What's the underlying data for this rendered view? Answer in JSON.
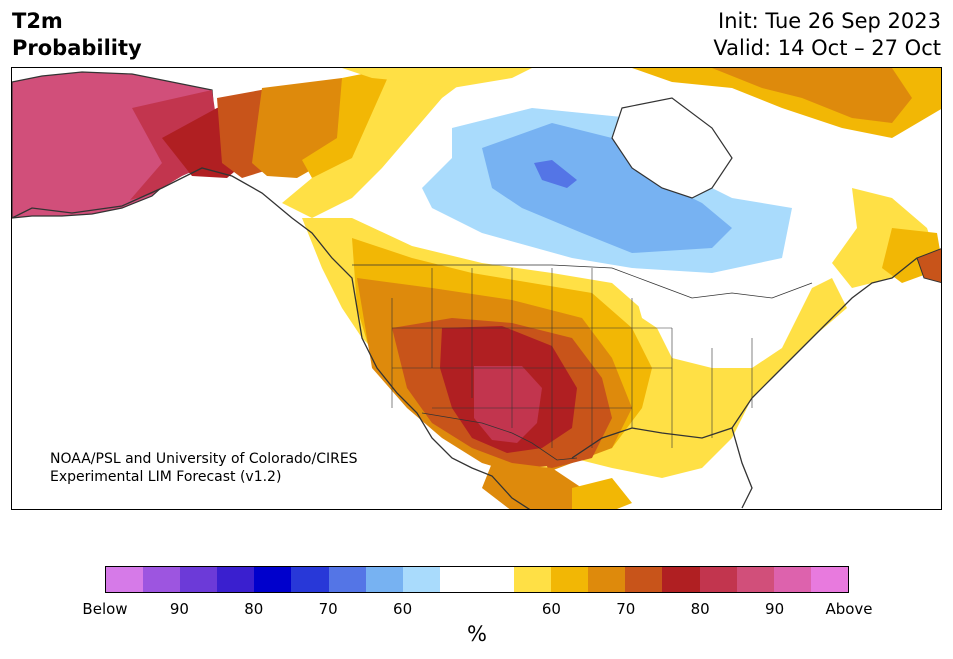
{
  "header": {
    "title_line1": "T2m",
    "title_line2": "Probability",
    "init_text": "Init: Tue 26 Sep 2023",
    "valid_text": "Valid: 14 Oct – 27 Oct"
  },
  "map": {
    "credit_line1": "NOAA/PSL and University of Colorado/CIRES",
    "credit_line2": "Experimental LIM Forecast (v1.2)"
  },
  "colorbar": {
    "colors": [
      "#d67ae8",
      "#9d55e0",
      "#6c3ad8",
      "#3a1fcf",
      "#0000cc",
      "#2838d8",
      "#5475e6",
      "#77b2f2",
      "#a9dbfc",
      "#ffffff",
      "#ffffff",
      "#ffe045",
      "#f2b705",
      "#de8a0c",
      "#c8541a",
      "#b01f22",
      "#c2354e",
      "#d14f7a",
      "#dd62ad",
      "#e87ade"
    ],
    "ticks": [
      "Below",
      "90",
      "80",
      "70",
      "60",
      "60",
      "70",
      "80",
      "90",
      "Above"
    ],
    "unit_label": "%"
  },
  "palette": {
    "below_light_blue": "#a9dbfc",
    "below_blue": "#77b2f2",
    "below_mid_blue": "#5475e6",
    "above_yellow": "#ffe045",
    "above_gold": "#f2b705",
    "above_orange": "#de8a0c",
    "above_red_orange": "#c8541a",
    "above_red": "#b01f22",
    "above_crimson": "#c2354e",
    "above_pink": "#d14f7a"
  }
}
